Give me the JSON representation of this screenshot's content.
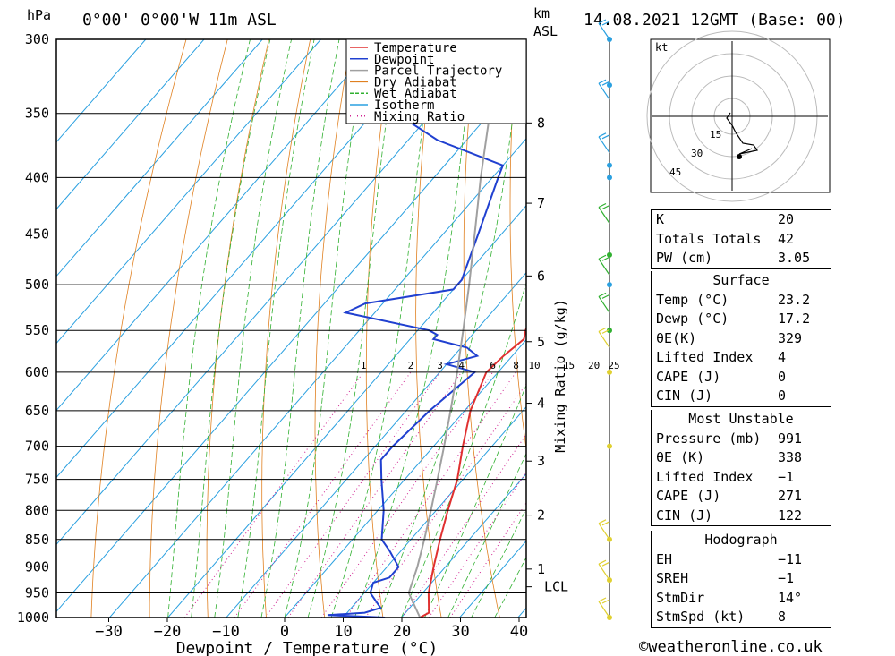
{
  "header": {
    "pressure_unit": "hPa",
    "location": "0°00' 0°00'W 11m ASL",
    "km_label": "km",
    "asl_label": "ASL",
    "datetime": "14.08.2021 12GMT (Base: 00)"
  },
  "axes": {
    "xlabel": "Dewpoint / Temperature (°C)",
    "mixing_ratio_label": "Mixing Ratio (g/kg)",
    "pressure_ticks": [
      "300",
      "350",
      "400",
      "450",
      "500",
      "550",
      "600",
      "650",
      "700",
      "750",
      "800",
      "850",
      "900",
      "950",
      "1000"
    ],
    "temp_ticks": [
      "−30",
      "−20",
      "−10",
      "0",
      "10",
      "20",
      "30",
      "40"
    ],
    "km_ticks": [
      "8",
      "7",
      "6",
      "5",
      "4",
      "3",
      "2",
      "1"
    ],
    "lcl_label": "LCL",
    "mixing_ratio_values": [
      "1",
      "2",
      "3",
      "4",
      "6",
      "8",
      "10",
      "15",
      "20",
      "25"
    ]
  },
  "legend": {
    "items": [
      {
        "label": "Temperature",
        "color": "#e03030"
      },
      {
        "label": "Dewpoint",
        "color": "#2040d0"
      },
      {
        "label": "Parcel Trajectory",
        "color": "#a0a0a0"
      },
      {
        "label": "Dry Adiabat",
        "color": "#e08020"
      },
      {
        "label": "Wet Adiabat",
        "color": "#30b030"
      },
      {
        "label": "Isotherm",
        "color": "#2aa0e0"
      },
      {
        "label": "Mixing Ratio",
        "color": "#d02090"
      }
    ]
  },
  "hodograph": {
    "unit": "kt",
    "ring_labels": [
      "15",
      "30",
      "45"
    ]
  },
  "indices": {
    "K": {
      "label": "K",
      "value": "20"
    },
    "TT": {
      "label": "Totals Totals",
      "value": "42"
    },
    "PW": {
      "label": "PW (cm)",
      "value": "3.05"
    }
  },
  "surface": {
    "title": "Surface",
    "rows": [
      {
        "label": "Temp (°C)",
        "value": "23.2"
      },
      {
        "label": "Dewp (°C)",
        "value": "17.2"
      },
      {
        "label": "θE(K)",
        "value": "329"
      },
      {
        "label": "Lifted Index",
        "value": "4"
      },
      {
        "label": "CAPE (J)",
        "value": "0"
      },
      {
        "label": "CIN (J)",
        "value": "0"
      }
    ]
  },
  "most_unstable": {
    "title": "Most Unstable",
    "rows": [
      {
        "label": "Pressure (mb)",
        "value": "991"
      },
      {
        "label": "θE (K)",
        "value": "338"
      },
      {
        "label": "Lifted Index",
        "value": "−1"
      },
      {
        "label": "CAPE (J)",
        "value": "271"
      },
      {
        "label": "CIN (J)",
        "value": "122"
      }
    ]
  },
  "hodograph_table": {
    "title": "Hodograph",
    "rows": [
      {
        "label": "EH",
        "value": "−11"
      },
      {
        "label": "SREH",
        "value": "−1"
      },
      {
        "label": "StmDir",
        "value": "14°"
      },
      {
        "label": "StmSpd (kt)",
        "value": "8"
      }
    ]
  },
  "footer": {
    "copyright": "©weatheronline.co.uk"
  },
  "chart_data": {
    "type": "line",
    "title": "",
    "xlabel": "Dewpoint / Temperature (°C)",
    "ylabel": "hPa",
    "xlim": [
      -40,
      40
    ],
    "ylim": [
      1000,
      300
    ],
    "series": [
      {
        "name": "Temperature",
        "color": "#e03030",
        "points": [
          [
            1000,
            23.2
          ],
          [
            990,
            24
          ],
          [
            950,
            21
          ],
          [
            900,
            18
          ],
          [
            850,
            15
          ],
          [
            800,
            12
          ],
          [
            750,
            9
          ],
          [
            700,
            5
          ],
          [
            650,
            1
          ],
          [
            600,
            -2
          ],
          [
            580,
            -1.5
          ],
          [
            560,
            -0.5
          ],
          [
            550,
            -1.5
          ],
          [
            500,
            -5.5
          ],
          [
            450,
            -11
          ],
          [
            400,
            -17
          ],
          [
            375,
            -21
          ],
          [
            350,
            -26
          ],
          [
            325,
            -31
          ],
          [
            300,
            -37
          ]
        ]
      },
      {
        "name": "Dewpoint",
        "color": "#2040d0",
        "points": [
          [
            1000,
            17.2
          ],
          [
            995,
            7
          ],
          [
            990,
            13
          ],
          [
            980,
            15
          ],
          [
            950,
            11
          ],
          [
            930,
            10
          ],
          [
            920,
            12
          ],
          [
            900,
            12
          ],
          [
            870,
            8
          ],
          [
            850,
            5
          ],
          [
            800,
            1
          ],
          [
            750,
            -4
          ],
          [
            720,
            -7
          ],
          [
            700,
            -7
          ],
          [
            650,
            -6
          ],
          [
            600,
            -4
          ],
          [
            590,
            -10
          ],
          [
            580,
            -6
          ],
          [
            570,
            -9
          ],
          [
            560,
            -16
          ],
          [
            555,
            -16
          ],
          [
            550,
            -18
          ],
          [
            530,
            -35
          ],
          [
            520,
            -33
          ],
          [
            505,
            -20
          ],
          [
            495,
            -20
          ],
          [
            450,
            -24
          ],
          [
            400,
            -29
          ],
          [
            390,
            -30
          ],
          [
            370,
            -45
          ],
          [
            350,
            -56
          ],
          [
            340,
            -53
          ],
          [
            330,
            -52
          ],
          [
            300,
            -54
          ]
        ]
      },
      {
        "name": "Parcel Trajectory",
        "color": "#a0a0a0",
        "points": [
          [
            1000,
            23.2
          ],
          [
            950,
            17.6
          ],
          [
            900,
            15.2
          ],
          [
            850,
            12.3
          ],
          [
            800,
            9.1
          ],
          [
            750,
            5.6
          ],
          [
            700,
            1.8
          ],
          [
            650,
            -2.4
          ],
          [
            600,
            -7
          ],
          [
            550,
            -12.2
          ],
          [
            500,
            -18
          ],
          [
            450,
            -24.6
          ],
          [
            400,
            -32
          ],
          [
            350,
            -40
          ],
          [
            300,
            -50
          ]
        ]
      }
    ]
  }
}
